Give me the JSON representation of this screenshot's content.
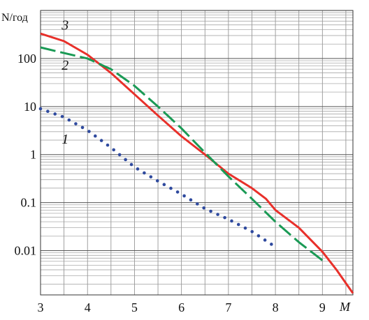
{
  "chart_data": {
    "type": "line",
    "title": "",
    "xlabel": "M",
    "ylabel": "N/год",
    "xlim": [
      3,
      9.65
    ],
    "ylim": [
      0.0012,
      1000
    ],
    "yscale": "log",
    "grid": true,
    "x_ticks": [
      "3",
      "4",
      "5",
      "6",
      "7",
      "8",
      "9"
    ],
    "y_ticks": [
      {
        "label": "100",
        "value": 100
      },
      {
        "label": "10",
        "value": 10
      },
      {
        "label": "1",
        "value": 1
      },
      {
        "label": "0.1",
        "value": 0.1
      },
      {
        "label": "0.01",
        "value": 0.01
      }
    ],
    "series": [
      {
        "label": "3",
        "color": "#e8302a",
        "style": "solid",
        "label_pos": {
          "x": 3.45,
          "y": 400
        },
        "points": [
          [
            3,
            330
          ],
          [
            3.5,
            230
          ],
          [
            4,
            120
          ],
          [
            4.5,
            50
          ],
          [
            5,
            18
          ],
          [
            5.5,
            6.5
          ],
          [
            6,
            2.4
          ],
          [
            6.5,
            1.0
          ],
          [
            7,
            0.4
          ],
          [
            7.5,
            0.2
          ],
          [
            7.8,
            0.12
          ],
          [
            8,
            0.07
          ],
          [
            8.5,
            0.03
          ],
          [
            9,
            0.0095
          ],
          [
            9.3,
            0.004
          ],
          [
            9.65,
            0.0013
          ]
        ]
      },
      {
        "label": "2",
        "color": "#1a9a55",
        "style": "dashed",
        "label_pos": {
          "x": 3.45,
          "y": 58
        },
        "points": [
          [
            3,
            170
          ],
          [
            3.5,
            130
          ],
          [
            4,
            100
          ],
          [
            4.5,
            60
          ],
          [
            5,
            27
          ],
          [
            5.5,
            10
          ],
          [
            6,
            3.5
          ],
          [
            6.5,
            1.1
          ],
          [
            7,
            0.35
          ],
          [
            7.5,
            0.12
          ],
          [
            8,
            0.04
          ],
          [
            8.5,
            0.015
          ],
          [
            9,
            0.0063
          ]
        ]
      },
      {
        "label": "1",
        "color": "#2f4a9e",
        "style": "dotted",
        "label_pos": {
          "x": 3.45,
          "y": 1.7
        },
        "points": [
          [
            3,
            9
          ],
          [
            3.5,
            6
          ],
          [
            4,
            3.2
          ],
          [
            4.5,
            1.4
          ],
          [
            5,
            0.55
          ],
          [
            5.5,
            0.28
          ],
          [
            6,
            0.15
          ],
          [
            6.5,
            0.075
          ],
          [
            7,
            0.045
          ],
          [
            7.5,
            0.025
          ],
          [
            8,
            0.012
          ]
        ]
      }
    ]
  }
}
